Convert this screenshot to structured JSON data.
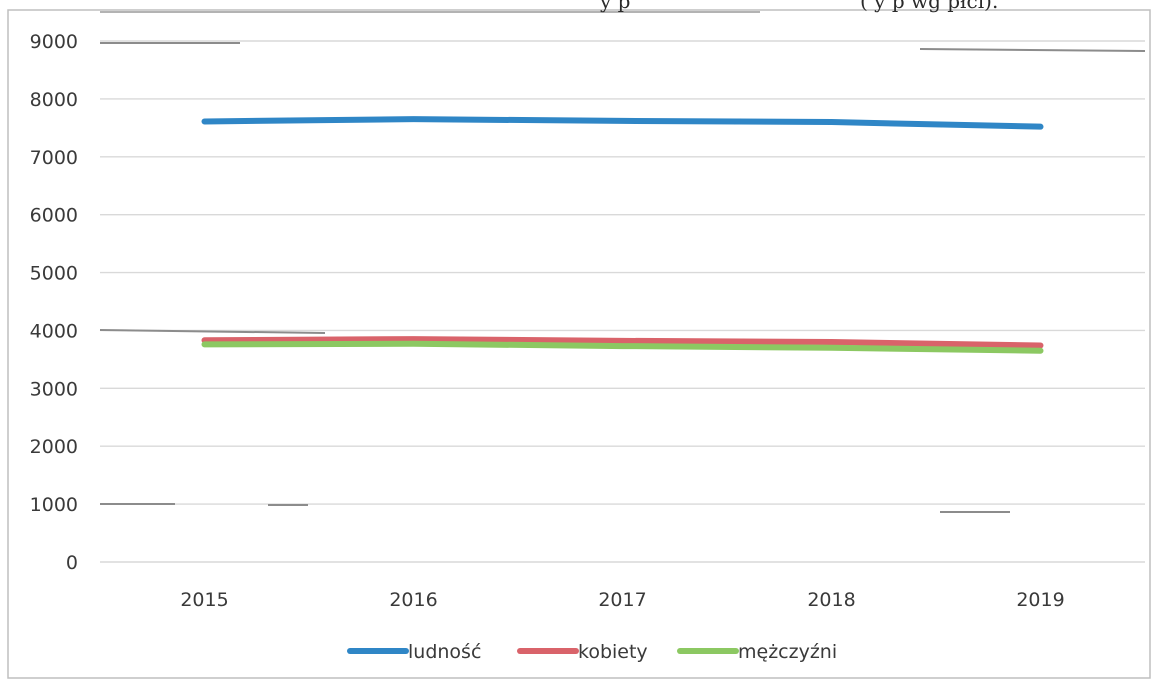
{
  "caption_fragments": {
    "middle": "y   p",
    "right": "(    y   p   wg płci)."
  },
  "chart_data": {
    "type": "line",
    "title": "",
    "xlabel": "",
    "ylabel": "",
    "categories": [
      "2015",
      "2016",
      "2017",
      "2018",
      "2019"
    ],
    "ylim": [
      0,
      9000
    ],
    "yticks": [
      0,
      1000,
      2000,
      3000,
      4000,
      5000,
      6000,
      7000,
      8000,
      9000
    ],
    "grid": true,
    "legend_position": "bottom",
    "series": [
      {
        "name": "ludność",
        "color": "#2f86c6",
        "values": [
          7610,
          7650,
          7620,
          7600,
          7520
        ]
      },
      {
        "name": "kobiety",
        "color": "#d9636a",
        "values": [
          3830,
          3850,
          3820,
          3800,
          3740
        ]
      },
      {
        "name": "mężczyźni",
        "color": "#8cc862",
        "values": [
          3760,
          3770,
          3730,
          3700,
          3650
        ]
      }
    ]
  }
}
